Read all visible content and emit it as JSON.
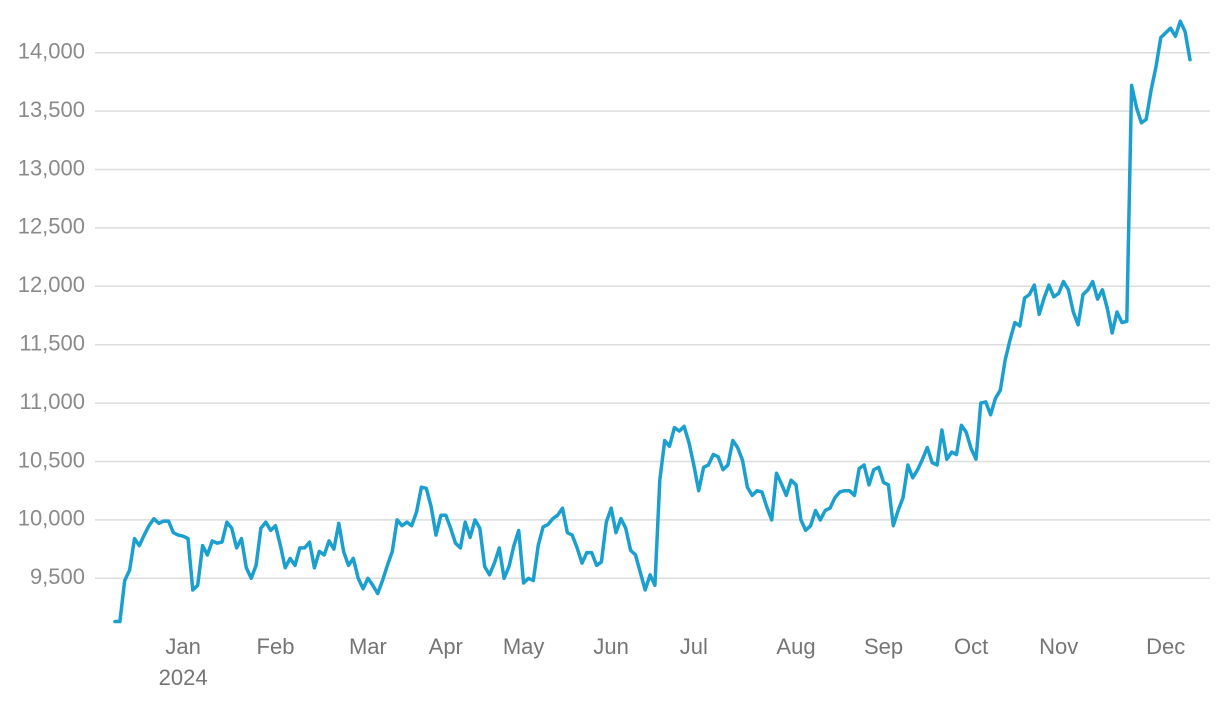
{
  "chart_data": {
    "type": "line",
    "categories": [
      null,
      null,
      null,
      null,
      null,
      null,
      null,
      null,
      null,
      null,
      null,
      null,
      null,
      null,
      "Jan",
      null,
      null,
      null,
      null,
      null,
      null,
      null,
      null,
      null,
      null,
      null,
      null,
      null,
      null,
      null,
      null,
      null,
      null,
      "Feb",
      null,
      null,
      null,
      null,
      null,
      null,
      null,
      null,
      null,
      null,
      null,
      null,
      null,
      null,
      null,
      null,
      null,
      null,
      "Mar",
      null,
      null,
      null,
      null,
      null,
      null,
      null,
      null,
      null,
      null,
      null,
      null,
      null,
      null,
      null,
      "Apr",
      null,
      null,
      null,
      null,
      null,
      null,
      null,
      null,
      null,
      null,
      null,
      null,
      null,
      null,
      null,
      "May",
      null,
      null,
      null,
      null,
      null,
      null,
      null,
      null,
      null,
      null,
      null,
      null,
      null,
      null,
      null,
      null,
      null,
      "Jun",
      null,
      null,
      null,
      null,
      null,
      null,
      null,
      null,
      null,
      null,
      null,
      null,
      null,
      null,
      null,
      null,
      "Jul",
      null,
      null,
      null,
      null,
      null,
      null,
      null,
      null,
      null,
      null,
      null,
      null,
      null,
      null,
      null,
      null,
      null,
      null,
      null,
      null,
      "Aug",
      null,
      null,
      null,
      null,
      null,
      null,
      null,
      null,
      null,
      null,
      null,
      null,
      null,
      null,
      null,
      null,
      null,
      "Sep",
      null,
      null,
      null,
      null,
      null,
      null,
      null,
      null,
      null,
      null,
      null,
      null,
      null,
      null,
      null,
      null,
      null,
      "Oct",
      null,
      null,
      null,
      null,
      null,
      null,
      null,
      null,
      null,
      null,
      null,
      null,
      null,
      null,
      null,
      null,
      null,
      "Nov",
      null,
      null,
      null,
      null,
      null,
      null,
      null,
      null,
      null,
      null,
      null,
      null,
      null,
      null,
      null,
      null,
      null,
      null,
      null,
      null,
      null,
      "Dec",
      null,
      null,
      null,
      null,
      null
    ],
    "year_label": "2024",
    "series": [
      {
        "color": "#1a9fcf",
        "values": [
          9130,
          9130,
          9480,
          9570,
          9840,
          9780,
          9870,
          9950,
          10010,
          9970,
          9990,
          9990,
          9890,
          9870,
          9860,
          9840,
          9400,
          9440,
          9780,
          9700,
          9820,
          9800,
          9810,
          9980,
          9930,
          9760,
          9840,
          9590,
          9500,
          9610,
          9930,
          9980,
          9910,
          9950,
          9780,
          9590,
          9670,
          9610,
          9760,
          9760,
          9810,
          9590,
          9730,
          9700,
          9820,
          9750,
          9970,
          9730,
          9610,
          9670,
          9500,
          9410,
          9500,
          9440,
          9370,
          9480,
          9610,
          9730,
          10000,
          9950,
          9980,
          9950,
          10070,
          10280,
          10270,
          10110,
          9870,
          10040,
          10040,
          9930,
          9800,
          9760,
          9980,
          9850,
          10000,
          9930,
          9600,
          9530,
          9630,
          9760,
          9500,
          9600,
          9780,
          9910,
          9460,
          9500,
          9480,
          9780,
          9940,
          9960,
          10010,
          10040,
          10100,
          9890,
          9870,
          9760,
          9630,
          9720,
          9720,
          9610,
          9640,
          9980,
          10100,
          9890,
          10010,
          9930,
          9740,
          9700,
          9550,
          9400,
          9530,
          9440,
          10340,
          10680,
          10630,
          10790,
          10760,
          10800,
          10660,
          10470,
          10250,
          10450,
          10470,
          10560,
          10540,
          10430,
          10470,
          10680,
          10620,
          10510,
          10280,
          10210,
          10250,
          10240,
          10110,
          10000,
          10400,
          10310,
          10210,
          10340,
          10300,
          10000,
          9910,
          9950,
          10080,
          10000,
          10080,
          10100,
          10190,
          10240,
          10250,
          10250,
          10210,
          10440,
          10470,
          10300,
          10430,
          10450,
          10320,
          10300,
          9950,
          10080,
          10190,
          10470,
          10360,
          10430,
          10520,
          10620,
          10490,
          10470,
          10770,
          10520,
          10580,
          10560,
          10810,
          10750,
          10610,
          10520,
          11000,
          11010,
          10900,
          11040,
          11110,
          11370,
          11540,
          11690,
          11660,
          11900,
          11930,
          12010,
          11760,
          11900,
          12010,
          11910,
          11940,
          12040,
          11970,
          11780,
          11670,
          11930,
          11970,
          12040,
          11890,
          11970,
          11810,
          11600,
          11780,
          11690,
          11700,
          13720,
          13530,
          13400,
          13430,
          13680,
          13880,
          14130,
          14170,
          14210,
          14140,
          14270,
          14180,
          13940
        ]
      }
    ],
    "ylim": [
      9100,
      14280
    ],
    "yticks": [
      {
        "value": 9500,
        "label": "9,500"
      },
      {
        "value": 10000,
        "label": "10,000"
      },
      {
        "value": 10500,
        "label": "10,500"
      },
      {
        "value": 11000,
        "label": "11,000"
      },
      {
        "value": 11500,
        "label": "11,500"
      },
      {
        "value": 12000,
        "label": "12,000"
      },
      {
        "value": 12500,
        "label": "12,500"
      },
      {
        "value": 13000,
        "label": "13,000"
      },
      {
        "value": 13500,
        "label": "13,500"
      },
      {
        "value": 14000,
        "label": "14,000"
      }
    ],
    "grid": true
  }
}
